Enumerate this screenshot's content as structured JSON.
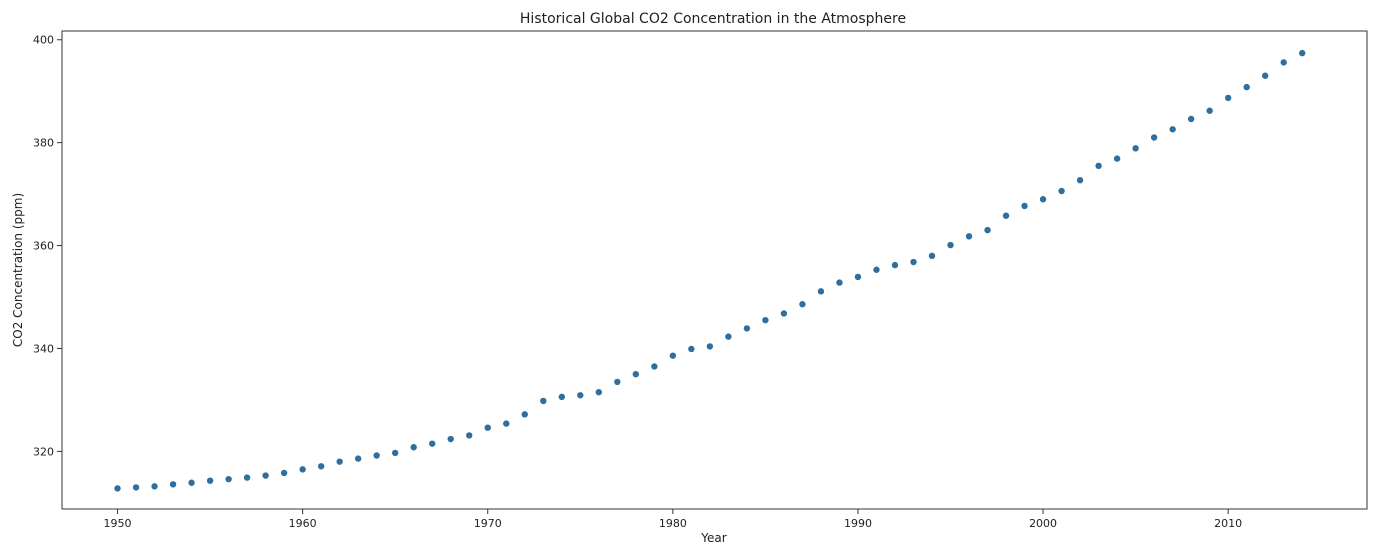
{
  "chart_data": {
    "type": "scatter",
    "title": "Historical Global CO2 Concentration in the Atmosphere",
    "xlabel": "Year",
    "ylabel": "CO2 Concentration (ppm)",
    "xlim": [
      1947.0,
      2017.5
    ],
    "ylim": [
      308.8,
      401.7
    ],
    "x_ticks": [
      1950,
      1960,
      1970,
      1980,
      1990,
      2000,
      2010
    ],
    "y_ticks": [
      320,
      340,
      360,
      380,
      400
    ],
    "grid": false,
    "marker_color": "#2e6f9e",
    "series": [
      {
        "x": [
          1950,
          1951,
          1952,
          1953,
          1954,
          1955,
          1956,
          1957,
          1958,
          1959,
          1960,
          1961,
          1962,
          1963,
          1964,
          1965,
          1966,
          1967,
          1968,
          1969,
          1970,
          1971,
          1972,
          1973,
          1974,
          1975,
          1976,
          1977,
          1978,
          1979,
          1980,
          1981,
          1982,
          1983,
          1984,
          1985,
          1986,
          1987,
          1988,
          1989,
          1990,
          1991,
          1992,
          1993,
          1994,
          1995,
          1996,
          1997,
          1998,
          1999,
          2000,
          2001,
          2002,
          2003,
          2004,
          2005,
          2006,
          2007,
          2008,
          2009,
          2010,
          2011,
          2012,
          2013,
          2014
        ],
        "y": [
          312.8,
          313.0,
          313.2,
          313.6,
          313.9,
          314.3,
          314.6,
          314.9,
          315.3,
          315.8,
          316.5,
          317.1,
          318.0,
          318.6,
          319.2,
          319.7,
          320.8,
          321.5,
          322.4,
          323.1,
          324.6,
          325.4,
          327.2,
          329.8,
          330.6,
          330.9,
          331.5,
          333.5,
          335.0,
          336.5,
          338.6,
          339.9,
          340.4,
          342.3,
          343.9,
          345.5,
          346.8,
          348.6,
          351.1,
          352.8,
          353.9,
          355.3,
          356.2,
          356.8,
          358.0,
          360.1,
          361.8,
          363.0,
          365.8,
          367.7,
          369.0,
          370.6,
          372.7,
          375.5,
          376.9,
          378.9,
          381.0,
          382.6,
          384.6,
          386.2,
          388.7,
          390.8,
          393.0,
          395.6,
          397.4
        ]
      }
    ]
  }
}
